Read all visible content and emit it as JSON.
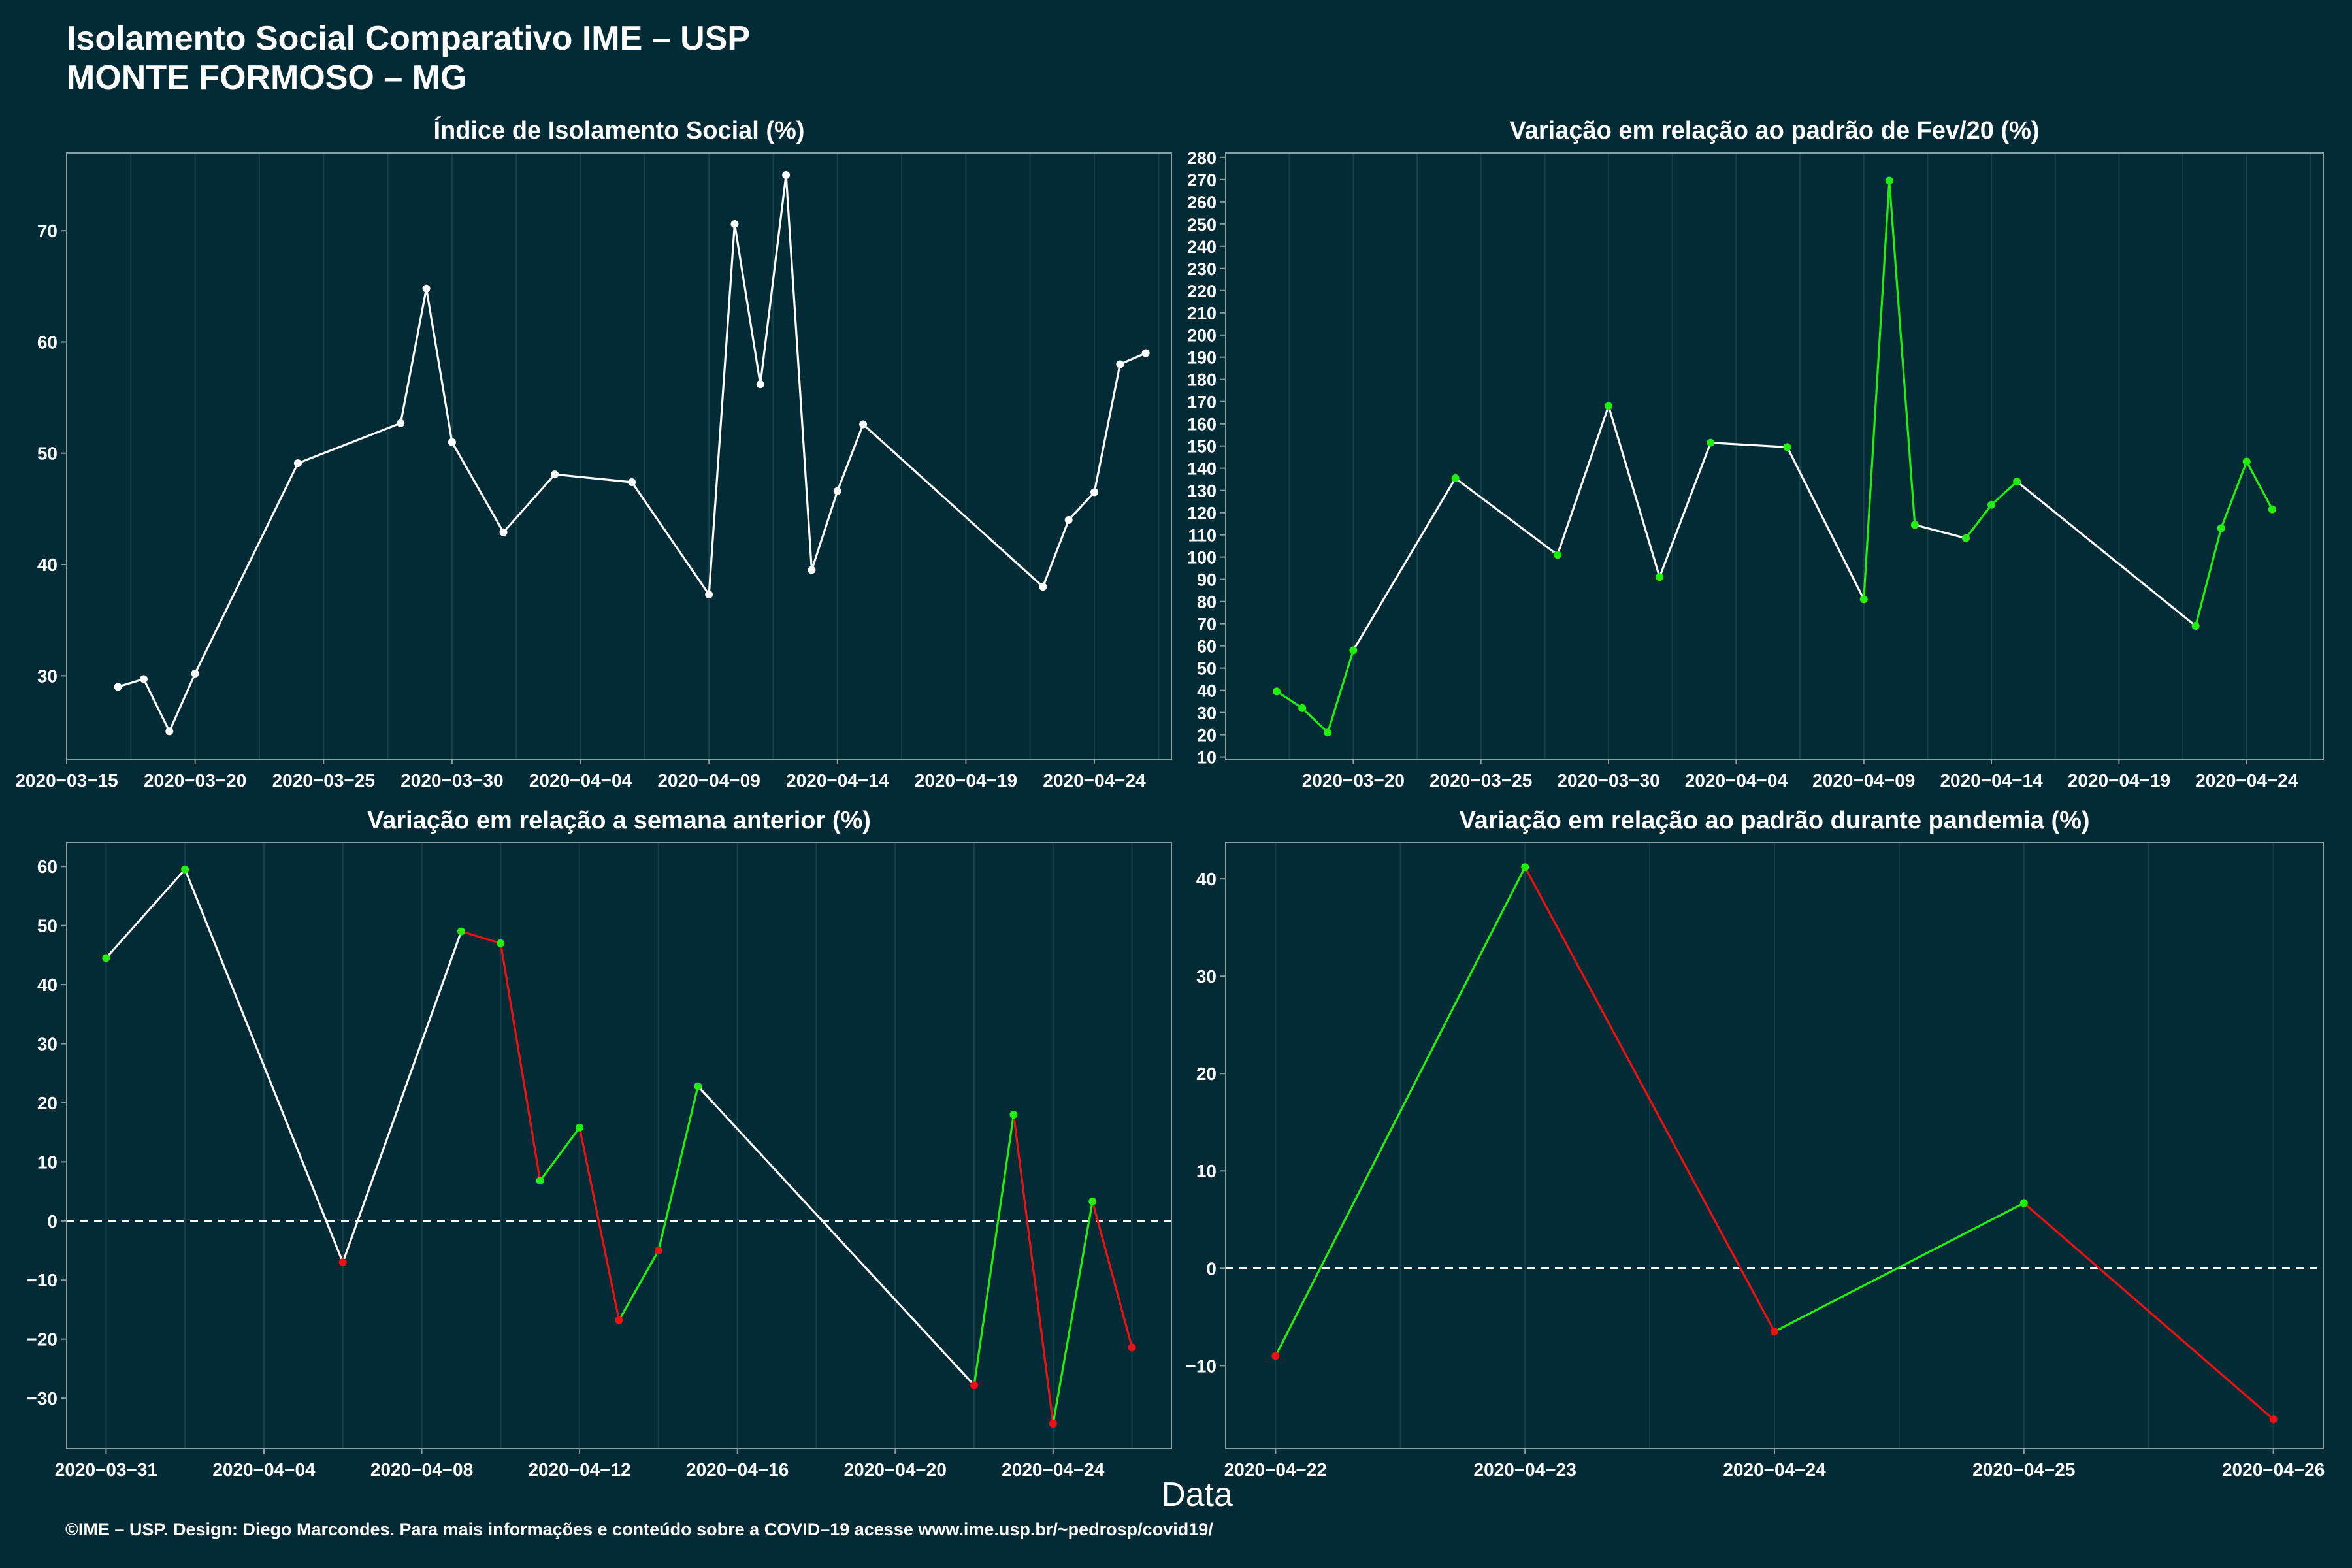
{
  "header": {
    "title_line1": "Isolamento Social Comparativo IME – USP",
    "title_line2": "MONTE FORMOSO – MG"
  },
  "x_axis_label": "Data",
  "footer": "©IME – USP. Design: Diego Marcondes. Para mais informações e conteúdo sobre a COVID–19 acesse www.ime.usp.br/~pedrosp/covid19/",
  "colors": {
    "background": "#022B35",
    "panel_border": "#8a9ea3",
    "gridline": "#15414b",
    "neutral": "#ffffff",
    "increase": "#22ee11",
    "decrease": "#ee1111"
  },
  "chart_data": [
    {
      "type": "line",
      "title": "Índice de Isolamento Social (%)",
      "xlabel": "",
      "ylabel": "",
      "xlim": [
        "2020-03-15",
        "2020-04-27"
      ],
      "ylim": [
        22.5,
        77
      ],
      "x_ticks": [
        "2020-03-15",
        "2020-03-20",
        "2020-03-25",
        "2020-03-30",
        "2020-04-04",
        "2020-04-09",
        "2020-04-14",
        "2020-04-19",
        "2020-04-24"
      ],
      "y_ticks": [
        30,
        40,
        50,
        60,
        70
      ],
      "grid": true,
      "point_color": "neutral",
      "series": [
        {
          "points": [
            {
              "x": "2020-03-17",
              "y": 29.0
            },
            {
              "x": "2020-03-18",
              "y": 29.7
            },
            {
              "x": "2020-03-19",
              "y": 25.0
            },
            {
              "x": "2020-03-20",
              "y": 30.2
            },
            {
              "x": "2020-03-24",
              "y": 49.1
            },
            {
              "x": "2020-03-28",
              "y": 52.7
            },
            {
              "x": "2020-03-29",
              "y": 64.8
            },
            {
              "x": "2020-03-30",
              "y": 51.0
            },
            {
              "x": "2020-04-01",
              "y": 42.9
            },
            {
              "x": "2020-04-03",
              "y": 48.1
            },
            {
              "x": "2020-04-06",
              "y": 47.4
            },
            {
              "x": "2020-04-09",
              "y": 37.3
            },
            {
              "x": "2020-04-10",
              "y": 70.6
            },
            {
              "x": "2020-04-11",
              "y": 56.2
            },
            {
              "x": "2020-04-12",
              "y": 75.0
            },
            {
              "x": "2020-04-13",
              "y": 39.5
            },
            {
              "x": "2020-04-14",
              "y": 46.6
            },
            {
              "x": "2020-04-15",
              "y": 52.6
            },
            {
              "x": "2020-04-22",
              "y": 38.0
            },
            {
              "x": "2020-04-23",
              "y": 44.0
            },
            {
              "x": "2020-04-24",
              "y": 46.5
            },
            {
              "x": "2020-04-25",
              "y": 58.0
            },
            {
              "x": "2020-04-26",
              "y": 59.0
            }
          ]
        }
      ]
    },
    {
      "type": "line",
      "title": "Variação em relação ao padrão de Fev/20 (%)",
      "xlabel": "",
      "ylabel": "",
      "xlim": [
        "2020-03-15",
        "2020-04-27"
      ],
      "ylim": [
        9,
        282
      ],
      "x_ticks": [
        "2020-03-20",
        "2020-03-25",
        "2020-03-30",
        "2020-04-04",
        "2020-04-09",
        "2020-04-14",
        "2020-04-19",
        "2020-04-24"
      ],
      "y_ticks": [
        10,
        20,
        30,
        40,
        50,
        60,
        70,
        80,
        90,
        100,
        110,
        120,
        130,
        140,
        150,
        160,
        170,
        180,
        190,
        200,
        210,
        220,
        230,
        240,
        250,
        260,
        270,
        280
      ],
      "grid": true,
      "point_color": "increase",
      "series": [
        {
          "points": [
            {
              "x": "2020-03-17",
              "y": 39.5
            },
            {
              "x": "2020-03-18",
              "y": 32.0
            },
            {
              "x": "2020-03-19",
              "y": 21.0
            },
            {
              "x": "2020-03-20",
              "y": 58.0
            },
            {
              "x": "2020-03-24",
              "y": 135.5
            },
            {
              "x": "2020-03-28",
              "y": 101.0
            },
            {
              "x": "2020-03-30",
              "y": 168.0
            },
            {
              "x": "2020-04-01",
              "y": 91.0
            },
            {
              "x": "2020-04-03",
              "y": 151.5
            },
            {
              "x": "2020-04-06",
              "y": 149.5
            },
            {
              "x": "2020-04-09",
              "y": 81.0
            },
            {
              "x": "2020-04-10",
              "y": 269.5
            },
            {
              "x": "2020-04-11",
              "y": 114.5
            },
            {
              "x": "2020-04-13",
              "y": 108.5
            },
            {
              "x": "2020-04-14",
              "y": 123.5
            },
            {
              "x": "2020-04-15",
              "y": 134.0
            },
            {
              "x": "2020-04-22",
              "y": 69.0
            },
            {
              "x": "2020-04-23",
              "y": 113.0
            },
            {
              "x": "2020-04-24",
              "y": 143.0
            },
            {
              "x": "2020-04-25",
              "y": 121.5
            }
          ]
        }
      ]
    },
    {
      "type": "line",
      "title": "Variação em relação a semana anterior (%)",
      "xlabel": "",
      "ylabel": "",
      "xlim": [
        "2020-03-30",
        "2020-04-27"
      ],
      "ylim": [
        -38.5,
        64
      ],
      "x_ticks": [
        "2020-03-31",
        "2020-04-04",
        "2020-04-08",
        "2020-04-12",
        "2020-04-16",
        "2020-04-20",
        "2020-04-24"
      ],
      "y_ticks": [
        -30,
        -20,
        -10,
        0,
        10,
        20,
        30,
        40,
        50,
        60
      ],
      "grid": true,
      "reference_line": 0,
      "series": [
        {
          "points": [
            {
              "x": "2020-03-31",
              "y": 44.5
            },
            {
              "x": "2020-04-02",
              "y": 59.5
            },
            {
              "x": "2020-04-06",
              "y": -7.0
            },
            {
              "x": "2020-04-09",
              "y": 49.0
            },
            {
              "x": "2020-04-10",
              "y": 47.0
            },
            {
              "x": "2020-04-11",
              "y": 6.8
            },
            {
              "x": "2020-04-12",
              "y": 15.8
            },
            {
              "x": "2020-04-13",
              "y": -16.8
            },
            {
              "x": "2020-04-14",
              "y": -5.0
            },
            {
              "x": "2020-04-15",
              "y": 22.8
            },
            {
              "x": "2020-04-22",
              "y": -27.8
            },
            {
              "x": "2020-04-23",
              "y": 18.0
            },
            {
              "x": "2020-04-24",
              "y": -34.3
            },
            {
              "x": "2020-04-25",
              "y": 3.3
            },
            {
              "x": "2020-04-26",
              "y": -21.4
            }
          ]
        }
      ]
    },
    {
      "type": "line",
      "title": "Variação em relação ao padrão durante pandemia (%)",
      "xlabel": "",
      "ylabel": "",
      "xlim": [
        "2020-04-21.8",
        "2020-04-26.2"
      ],
      "ylim": [
        -18.5,
        43.7
      ],
      "x_ticks": [
        "2020-04-22",
        "2020-04-23",
        "2020-04-24",
        "2020-04-25",
        "2020-04-26"
      ],
      "y_ticks": [
        -10,
        0,
        10,
        20,
        30,
        40
      ],
      "grid": true,
      "reference_line": 0,
      "series": [
        {
          "points": [
            {
              "x": "2020-04-22",
              "y": -9.0
            },
            {
              "x": "2020-04-23",
              "y": 41.2
            },
            {
              "x": "2020-04-24",
              "y": -6.5
            },
            {
              "x": "2020-04-25",
              "y": 6.7
            },
            {
              "x": "2020-04-26",
              "y": -15.5
            }
          ]
        }
      ]
    }
  ]
}
